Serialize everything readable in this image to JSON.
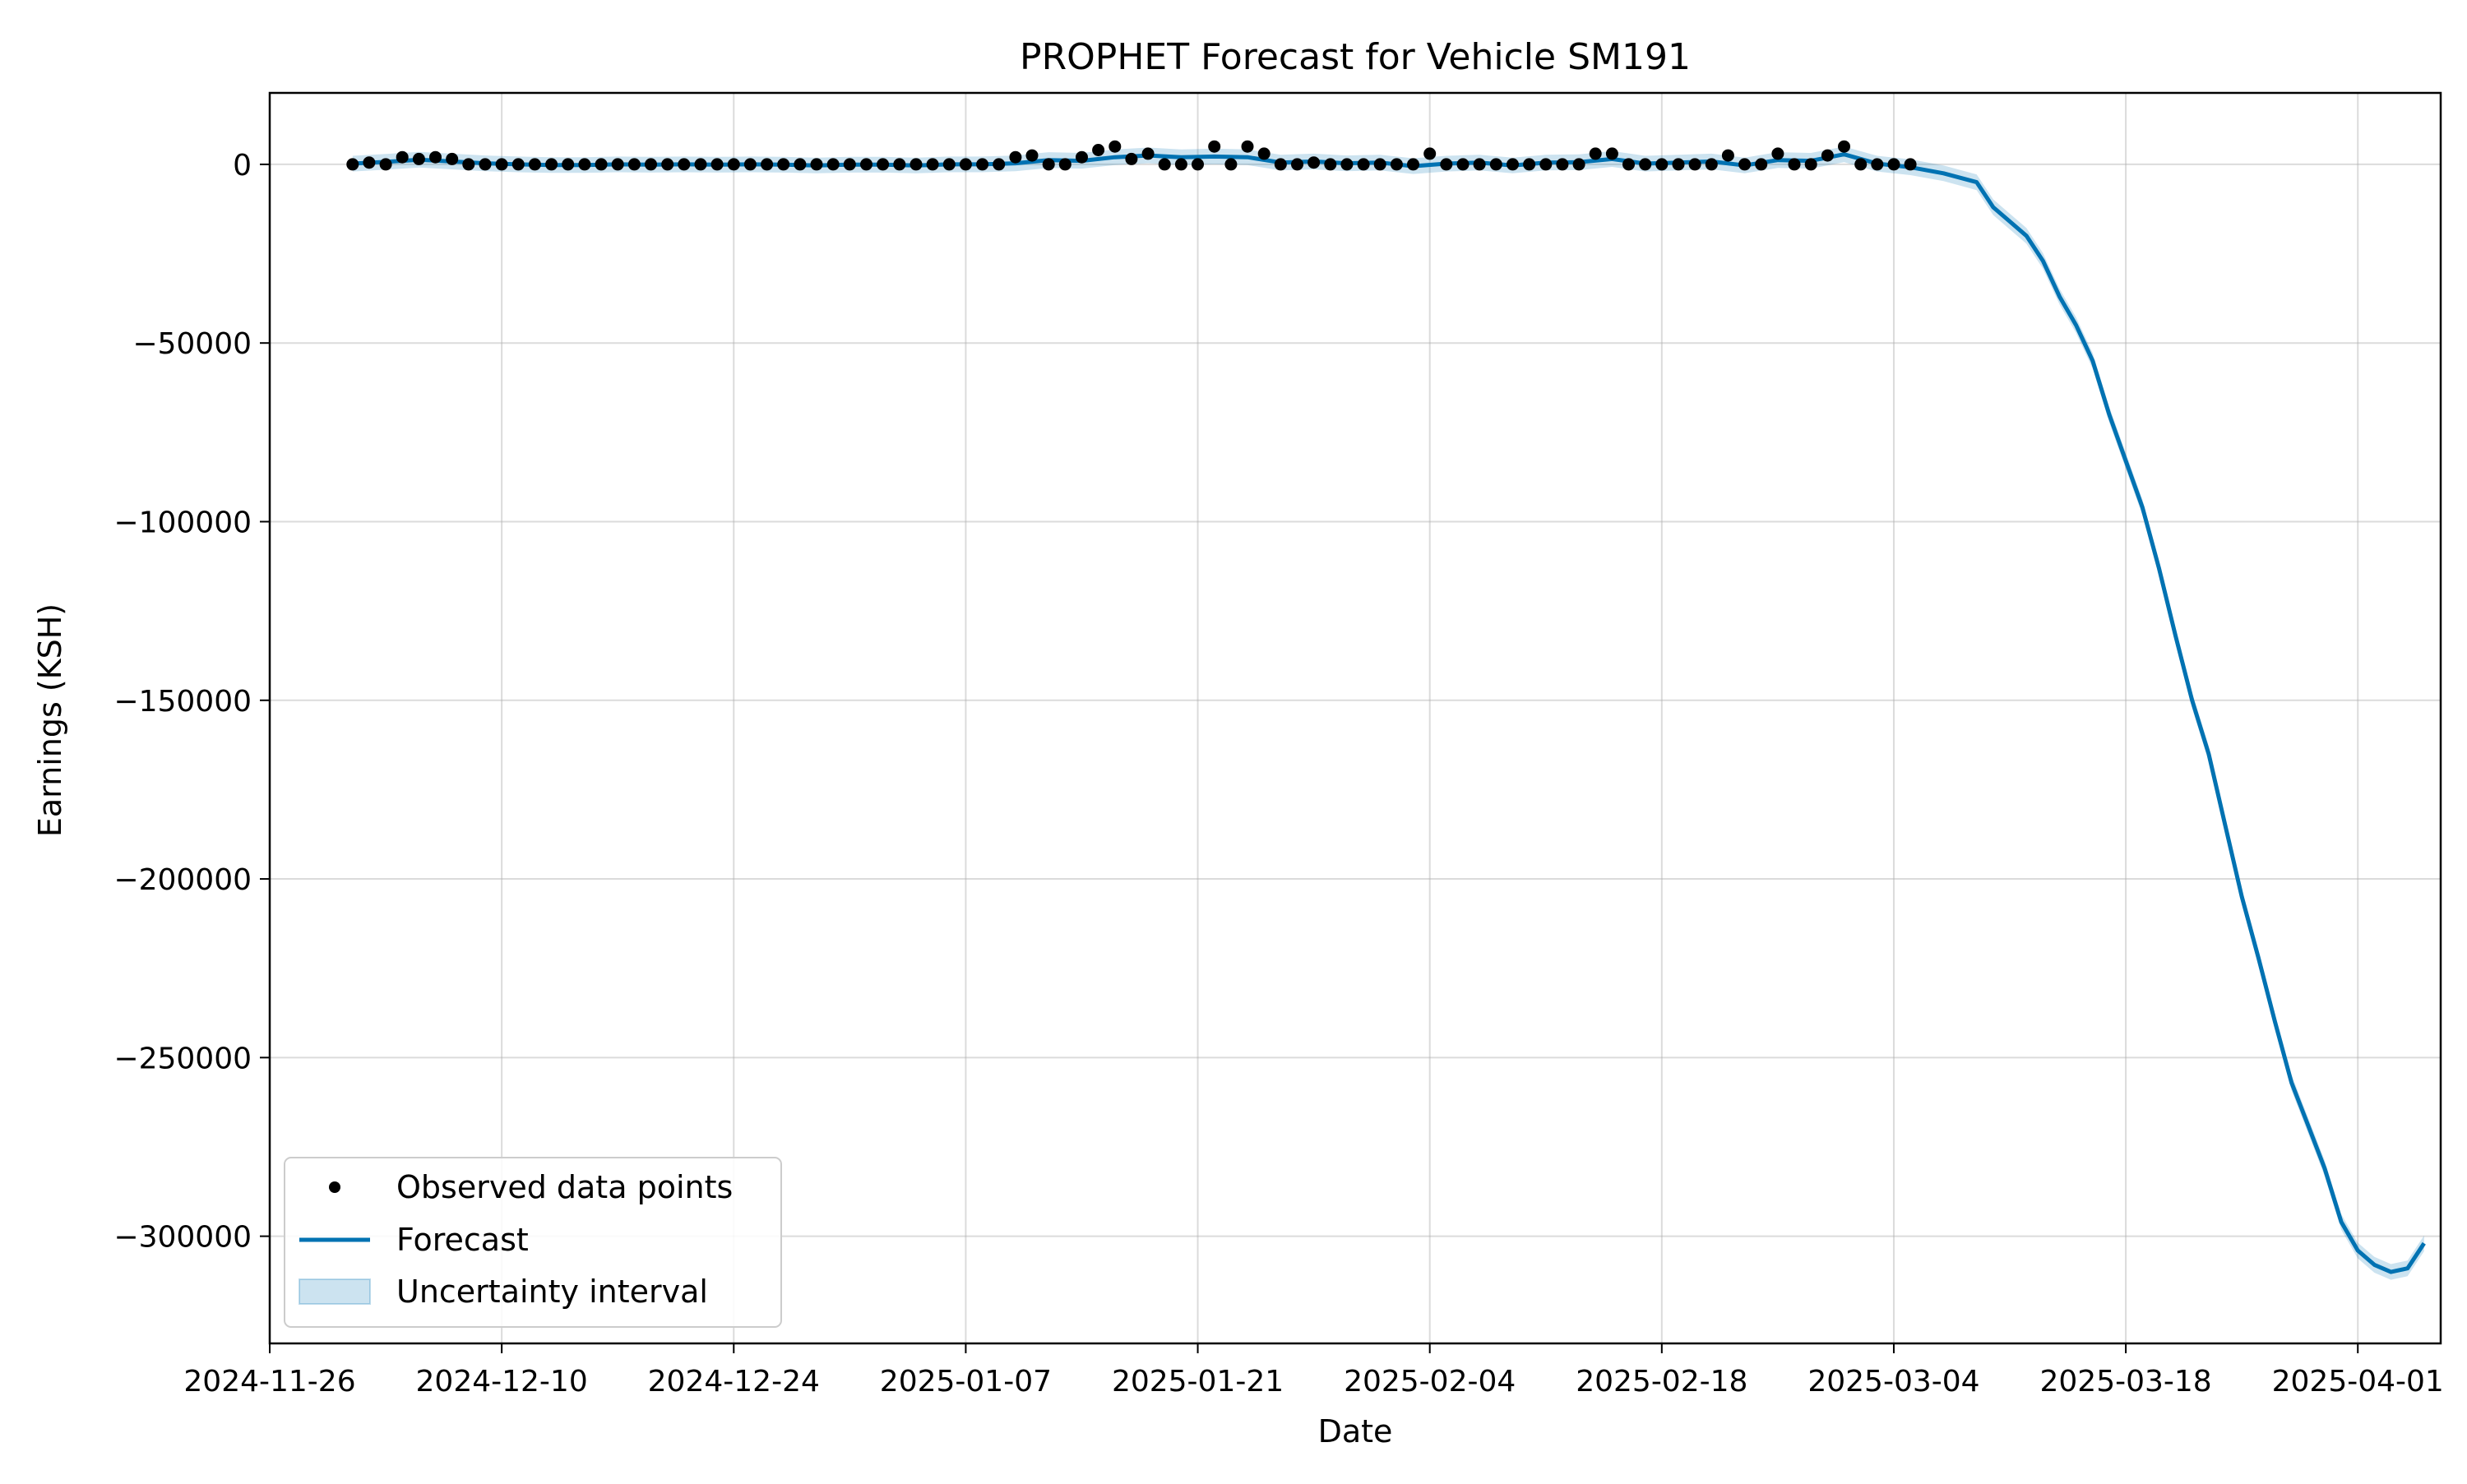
{
  "chart_data": {
    "type": "line",
    "title": "PROPHET Forecast for Vehicle SM191",
    "xlabel": "Date",
    "ylabel": "Earnings (KSH)",
    "x_axis_kind": "date",
    "xlim": [
      "2024-11-26",
      "2025-04-06"
    ],
    "ylim": [
      -330000,
      20000
    ],
    "x_ticks": [
      "2024-11-26",
      "2024-12-10",
      "2024-12-24",
      "2025-01-07",
      "2025-01-21",
      "2025-02-04",
      "2025-02-18",
      "2025-03-04",
      "2025-03-18",
      "2025-04-01"
    ],
    "y_ticks": [
      0,
      -50000,
      -100000,
      -150000,
      -200000,
      -250000,
      -300000
    ],
    "y_tick_labels": [
      "0",
      "−50000",
      "−100000",
      "−150000",
      "−200000",
      "−250000",
      "−300000"
    ],
    "grid": true,
    "legend_position": "lower-left",
    "colors": {
      "observed": "#000000",
      "forecast": "#0072B2",
      "uncertainty": "#0072B2"
    },
    "legend": [
      {
        "label": "Observed data points",
        "kind": "marker"
      },
      {
        "label": "Forecast",
        "kind": "line"
      },
      {
        "label": "Uncertainty interval",
        "kind": "patch"
      }
    ],
    "series": [
      {
        "name": "Observed data points",
        "kind": "scatter",
        "points": [
          [
            "2024-12-01",
            0
          ],
          [
            "2024-12-02",
            500
          ],
          [
            "2024-12-03",
            0
          ],
          [
            "2024-12-04",
            2000
          ],
          [
            "2024-12-05",
            1500
          ],
          [
            "2024-12-06",
            2000
          ],
          [
            "2024-12-07",
            1500
          ],
          [
            "2024-12-08",
            0
          ],
          [
            "2024-12-09",
            0
          ],
          [
            "2024-12-10",
            0
          ],
          [
            "2024-12-11",
            0
          ],
          [
            "2024-12-12",
            0
          ],
          [
            "2024-12-13",
            0
          ],
          [
            "2024-12-14",
            0
          ],
          [
            "2024-12-15",
            0
          ],
          [
            "2024-12-16",
            0
          ],
          [
            "2024-12-17",
            0
          ],
          [
            "2024-12-18",
            0
          ],
          [
            "2024-12-19",
            0
          ],
          [
            "2024-12-20",
            0
          ],
          [
            "2024-12-21",
            0
          ],
          [
            "2024-12-22",
            0
          ],
          [
            "2024-12-23",
            0
          ],
          [
            "2024-12-24",
            0
          ],
          [
            "2024-12-25",
            0
          ],
          [
            "2024-12-26",
            0
          ],
          [
            "2024-12-27",
            0
          ],
          [
            "2024-12-28",
            0
          ],
          [
            "2024-12-29",
            0
          ],
          [
            "2024-12-30",
            0
          ],
          [
            "2024-12-31",
            0
          ],
          [
            "2025-01-01",
            0
          ],
          [
            "2025-01-02",
            0
          ],
          [
            "2025-01-03",
            0
          ],
          [
            "2025-01-04",
            0
          ],
          [
            "2025-01-05",
            0
          ],
          [
            "2025-01-06",
            0
          ],
          [
            "2025-01-07",
            0
          ],
          [
            "2025-01-08",
            0
          ],
          [
            "2025-01-09",
            0
          ],
          [
            "2025-01-10",
            2000
          ],
          [
            "2025-01-11",
            2500
          ],
          [
            "2025-01-12",
            0
          ],
          [
            "2025-01-13",
            0
          ],
          [
            "2025-01-14",
            2000
          ],
          [
            "2025-01-15",
            4000
          ],
          [
            "2025-01-16",
            5000
          ],
          [
            "2025-01-17",
            1500
          ],
          [
            "2025-01-18",
            3000
          ],
          [
            "2025-01-19",
            0
          ],
          [
            "2025-01-20",
            0
          ],
          [
            "2025-01-21",
            0
          ],
          [
            "2025-01-22",
            5000
          ],
          [
            "2025-01-23",
            0
          ],
          [
            "2025-01-24",
            5000
          ],
          [
            "2025-01-25",
            3000
          ],
          [
            "2025-01-26",
            0
          ],
          [
            "2025-01-27",
            0
          ],
          [
            "2025-01-28",
            500
          ],
          [
            "2025-01-29",
            0
          ],
          [
            "2025-01-30",
            0
          ],
          [
            "2025-01-31",
            0
          ],
          [
            "2025-02-01",
            0
          ],
          [
            "2025-02-02",
            0
          ],
          [
            "2025-02-03",
            0
          ],
          [
            "2025-02-04",
            3000
          ],
          [
            "2025-02-05",
            0
          ],
          [
            "2025-02-06",
            0
          ],
          [
            "2025-02-07",
            0
          ],
          [
            "2025-02-08",
            0
          ],
          [
            "2025-02-09",
            0
          ],
          [
            "2025-02-10",
            0
          ],
          [
            "2025-02-11",
            0
          ],
          [
            "2025-02-12",
            0
          ],
          [
            "2025-02-13",
            0
          ],
          [
            "2025-02-14",
            3000
          ],
          [
            "2025-02-15",
            3000
          ],
          [
            "2025-02-16",
            0
          ],
          [
            "2025-02-17",
            0
          ],
          [
            "2025-02-18",
            0
          ],
          [
            "2025-02-19",
            0
          ],
          [
            "2025-02-20",
            0
          ],
          [
            "2025-02-21",
            0
          ],
          [
            "2025-02-22",
            2500
          ],
          [
            "2025-02-23",
            0
          ],
          [
            "2025-02-24",
            0
          ],
          [
            "2025-02-25",
            3000
          ],
          [
            "2025-02-26",
            0
          ],
          [
            "2025-02-27",
            0
          ],
          [
            "2025-02-28",
            2500
          ],
          [
            "2025-03-01",
            5000
          ],
          [
            "2025-03-02",
            0
          ],
          [
            "2025-03-03",
            0
          ],
          [
            "2025-03-04",
            0
          ],
          [
            "2025-03-05",
            0
          ]
        ]
      },
      {
        "name": "Forecast",
        "kind": "line",
        "points": [
          [
            "2024-12-01",
            200
          ],
          [
            "2024-12-03",
            700
          ],
          [
            "2024-12-05",
            1300
          ],
          [
            "2024-12-07",
            800
          ],
          [
            "2024-12-09",
            300
          ],
          [
            "2024-12-11",
            0
          ],
          [
            "2024-12-13",
            -200
          ],
          [
            "2024-12-15",
            -200
          ],
          [
            "2024-12-17",
            0
          ],
          [
            "2024-12-19",
            -100
          ],
          [
            "2024-12-21",
            0
          ],
          [
            "2024-12-23",
            -100
          ],
          [
            "2024-12-25",
            0
          ],
          [
            "2024-12-27",
            -100
          ],
          [
            "2024-12-29",
            -300
          ],
          [
            "2024-12-31",
            -100
          ],
          [
            "2025-01-02",
            -100
          ],
          [
            "2025-01-04",
            -300
          ],
          [
            "2025-01-06",
            0
          ],
          [
            "2025-01-08",
            0
          ],
          [
            "2025-01-10",
            300
          ],
          [
            "2025-01-12",
            1200
          ],
          [
            "2025-01-14",
            1000
          ],
          [
            "2025-01-16",
            2000
          ],
          [
            "2025-01-18",
            2500
          ],
          [
            "2025-01-20",
            2000
          ],
          [
            "2025-01-22",
            2200
          ],
          [
            "2025-01-24",
            2000
          ],
          [
            "2025-01-26",
            500
          ],
          [
            "2025-01-28",
            800
          ],
          [
            "2025-01-30",
            300
          ],
          [
            "2025-02-01",
            500
          ],
          [
            "2025-02-03",
            -500
          ],
          [
            "2025-02-05",
            200
          ],
          [
            "2025-02-07",
            500
          ],
          [
            "2025-02-09",
            -300
          ],
          [
            "2025-02-11",
            500
          ],
          [
            "2025-02-13",
            600
          ],
          [
            "2025-02-15",
            1500
          ],
          [
            "2025-02-17",
            200
          ],
          [
            "2025-02-19",
            500
          ],
          [
            "2025-02-21",
            800
          ],
          [
            "2025-02-23",
            -300
          ],
          [
            "2025-02-25",
            1200
          ],
          [
            "2025-02-27",
            1000
          ],
          [
            "2025-03-01",
            2800
          ],
          [
            "2025-03-03",
            200
          ],
          [
            "2025-03-05",
            -800
          ],
          [
            "2025-03-07",
            -2500
          ],
          [
            "2025-03-09",
            -5000
          ],
          [
            "2025-03-10",
            -12000
          ],
          [
            "2025-03-11",
            -16000
          ],
          [
            "2025-03-12",
            -20000
          ],
          [
            "2025-03-13",
            -27000
          ],
          [
            "2025-03-14",
            -37000
          ],
          [
            "2025-03-15",
            -45000
          ],
          [
            "2025-03-16",
            -55000
          ],
          [
            "2025-03-17",
            -70000
          ],
          [
            "2025-03-18",
            -83000
          ],
          [
            "2025-03-19",
            -96000
          ],
          [
            "2025-03-20",
            -113000
          ],
          [
            "2025-03-21",
            -132000
          ],
          [
            "2025-03-22",
            -150000
          ],
          [
            "2025-03-23",
            -165000
          ],
          [
            "2025-03-24",
            -185000
          ],
          [
            "2025-03-25",
            -205000
          ],
          [
            "2025-03-26",
            -222000
          ],
          [
            "2025-03-27",
            -240000
          ],
          [
            "2025-03-28",
            -257000
          ],
          [
            "2025-03-29",
            -269000
          ],
          [
            "2025-03-30",
            -281000
          ],
          [
            "2025-03-31",
            -296000
          ],
          [
            "2025-04-01",
            -304000
          ],
          [
            "2025-04-02",
            -308000
          ],
          [
            "2025-04-03",
            -310000
          ],
          [
            "2025-04-04",
            -309000
          ],
          [
            "2025-04-05",
            -302000
          ]
        ]
      }
    ],
    "uncertainty_halfwidth": 2200
  }
}
